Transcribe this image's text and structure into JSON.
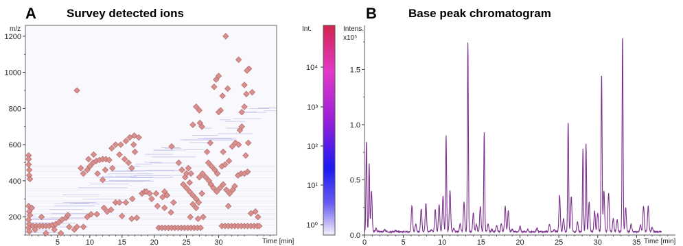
{
  "panels": {
    "a": {
      "letter": "A",
      "title": "Survey detected ions"
    },
    "b": {
      "letter": "B",
      "title": "Base peak chromatogram"
    }
  },
  "colors": {
    "marker_fill": "#d9918f",
    "marker_stroke": "#b8706e",
    "ion_trace": "#4040c0",
    "trace": "#7b2f8e",
    "colorbar_stops": [
      "#f4f0fa",
      "#6a5cf0",
      "#1a1af0",
      "#9b20d8",
      "#e23ac8",
      "#d3234d"
    ]
  },
  "chart_data": [
    {
      "type": "scatter",
      "title": "Survey detected ions",
      "xlabel": "Time [min]",
      "ylabel": "m/z",
      "xlim": [
        0,
        39
      ],
      "ylim": [
        100,
        1260
      ],
      "x_ticks": [
        5,
        10,
        15,
        20,
        25,
        30
      ],
      "y_ticks": [
        200,
        400,
        600,
        800,
        1000,
        1200
      ],
      "colorbar": {
        "label": "Int.",
        "scale": "log",
        "ticks": [
          "10⁰",
          "10¹",
          "10²",
          "10³",
          "10⁴"
        ]
      },
      "points": [
        [
          0.5,
          540
        ],
        [
          0.5,
          520
        ],
        [
          0.5,
          490
        ],
        [
          0.6,
          460
        ],
        [
          0.6,
          430
        ],
        [
          0.7,
          410
        ],
        [
          0.5,
          260
        ],
        [
          0.6,
          230
        ],
        [
          0.7,
          210
        ],
        [
          0.5,
          185
        ],
        [
          0.6,
          160
        ],
        [
          0.5,
          140
        ],
        [
          0.6,
          120
        ],
        [
          1.2,
          150
        ],
        [
          1.7,
          150
        ],
        [
          2.2,
          150
        ],
        [
          2.7,
          150
        ],
        [
          3.2,
          150
        ],
        [
          3.7,
          150
        ],
        [
          4.2,
          155
        ],
        [
          4.7,
          160
        ],
        [
          5.2,
          170
        ],
        [
          5.7,
          185
        ],
        [
          6.3,
          195
        ],
        [
          6.6,
          210
        ],
        [
          1.5,
          130
        ],
        [
          2.5,
          200
        ],
        [
          3.2,
          110
        ],
        [
          4.5,
          130
        ],
        [
          5.5,
          110
        ],
        [
          6.8,
          145
        ],
        [
          7.6,
          130
        ],
        [
          8.0,
          900
        ],
        [
          8.6,
          470
        ],
        [
          1.0,
          250
        ],
        [
          9.0,
          440
        ],
        [
          9.6,
          460
        ],
        [
          10.0,
          480
        ],
        [
          10.5,
          500
        ],
        [
          11.0,
          510
        ],
        [
          11.5,
          515
        ],
        [
          12.0,
          520
        ],
        [
          12.5,
          520
        ],
        [
          13.0,
          515
        ],
        [
          9.8,
          520
        ],
        [
          10.6,
          545
        ],
        [
          11.2,
          440
        ],
        [
          12.4,
          460
        ],
        [
          12.0,
          405
        ],
        [
          13.5,
          470
        ],
        [
          13.4,
          580
        ],
        [
          14.0,
          600
        ],
        [
          14.8,
          600
        ],
        [
          15.6,
          620
        ],
        [
          16.2,
          640
        ],
        [
          16.9,
          650
        ],
        [
          17.6,
          640
        ],
        [
          16.8,
          600
        ],
        [
          14.6,
          545
        ],
        [
          15.4,
          520
        ],
        [
          16.0,
          500
        ],
        [
          17.0,
          560
        ],
        [
          16.5,
          470
        ],
        [
          8.0,
          145
        ],
        [
          9.0,
          145
        ],
        [
          9.6,
          200
        ],
        [
          10.2,
          215
        ],
        [
          11.1,
          215
        ],
        [
          12.2,
          250
        ],
        [
          12.7,
          230
        ],
        [
          13.3,
          240
        ],
        [
          14.0,
          280
        ],
        [
          14.6,
          280
        ],
        [
          15.6,
          280
        ],
        [
          16.6,
          300
        ],
        [
          15.0,
          205
        ],
        [
          16.5,
          190
        ],
        [
          17.3,
          195
        ],
        [
          18.1,
          330
        ],
        [
          18.5,
          340
        ],
        [
          18.8,
          340
        ],
        [
          19.3,
          330
        ],
        [
          19.6,
          300
        ],
        [
          20.3,
          330
        ],
        [
          21.3,
          310
        ],
        [
          21.6,
          340
        ],
        [
          22.0,
          320
        ],
        [
          23.0,
          280
        ],
        [
          22.6,
          225
        ],
        [
          21.6,
          250
        ],
        [
          20.5,
          260
        ],
        [
          20.7,
          140
        ],
        [
          21.2,
          140
        ],
        [
          21.7,
          140
        ],
        [
          22.2,
          140
        ],
        [
          22.7,
          140
        ],
        [
          23.2,
          140
        ],
        [
          23.7,
          140
        ],
        [
          24.2,
          140
        ],
        [
          24.7,
          140
        ],
        [
          25.2,
          140
        ],
        [
          25.7,
          140
        ],
        [
          26.2,
          140
        ],
        [
          26.7,
          140
        ],
        [
          27.2,
          140
        ],
        [
          22.7,
          590
        ],
        [
          23.8,
          500
        ],
        [
          24.3,
          460
        ],
        [
          24.8,
          420
        ],
        [
          24.5,
          380
        ],
        [
          25.0,
          360
        ],
        [
          25.5,
          390
        ],
        [
          25.0,
          440
        ],
        [
          25.3,
          470
        ],
        [
          25.7,
          440
        ],
        [
          25.5,
          340
        ],
        [
          26.0,
          320
        ],
        [
          26.5,
          300
        ],
        [
          26.9,
          280
        ],
        [
          27.4,
          330
        ],
        [
          26.0,
          270
        ],
        [
          26.5,
          250
        ],
        [
          25.6,
          200
        ],
        [
          26.8,
          190
        ],
        [
          27.6,
          200
        ],
        [
          27.0,
          420
        ],
        [
          27.5,
          440
        ],
        [
          28.0,
          420
        ],
        [
          28.5,
          400
        ],
        [
          28.8,
          380
        ],
        [
          29.2,
          360
        ],
        [
          29.7,
          340
        ],
        [
          30.2,
          360
        ],
        [
          30.7,
          380
        ],
        [
          31.2,
          350
        ],
        [
          31.7,
          330
        ],
        [
          32.2,
          350
        ],
        [
          31.5,
          260
        ],
        [
          32.5,
          370
        ],
        [
          33.0,
          430
        ],
        [
          33.5,
          440
        ],
        [
          34.0,
          440
        ],
        [
          34.5,
          450
        ],
        [
          34.2,
          540
        ],
        [
          34.6,
          610
        ],
        [
          26.0,
          710
        ],
        [
          26.5,
          810
        ],
        [
          27.0,
          790
        ],
        [
          27.4,
          700
        ],
        [
          28.2,
          560
        ],
        [
          28.7,
          610
        ],
        [
          28.4,
          500
        ],
        [
          28.9,
          480
        ],
        [
          29.4,
          460
        ],
        [
          29.8,
          440
        ],
        [
          30.5,
          480
        ],
        [
          31.0,
          490
        ],
        [
          30.7,
          560
        ],
        [
          31.6,
          510
        ],
        [
          32.1,
          590
        ],
        [
          32.6,
          610
        ],
        [
          33.1,
          600
        ],
        [
          33.3,
          680
        ],
        [
          33.6,
          700
        ],
        [
          33.6,
          780
        ],
        [
          34.0,
          810
        ],
        [
          34.3,
          880
        ],
        [
          34.0,
          930
        ],
        [
          34.7,
          1020
        ],
        [
          33.1,
          1070
        ],
        [
          31.1,
          1200
        ],
        [
          30.0,
          980
        ],
        [
          29.6,
          960
        ],
        [
          29.3,
          920
        ],
        [
          30.6,
          870
        ],
        [
          30.3,
          790
        ],
        [
          30.0,
          780
        ],
        [
          31.4,
          910
        ],
        [
          35.2,
          890
        ],
        [
          34.4,
          1010
        ],
        [
          27.1,
          720
        ],
        [
          30.5,
          150
        ],
        [
          31.0,
          150
        ],
        [
          31.5,
          150
        ],
        [
          32.0,
          150
        ],
        [
          32.5,
          150
        ],
        [
          33.0,
          150
        ],
        [
          33.5,
          150
        ],
        [
          34.0,
          150
        ],
        [
          34.5,
          150
        ],
        [
          35.0,
          150
        ],
        [
          35.5,
          150
        ],
        [
          36.0,
          150
        ],
        [
          36.3,
          150
        ],
        [
          35.0,
          220
        ],
        [
          35.7,
          230
        ],
        [
          36.1,
          200
        ]
      ]
    },
    {
      "type": "line",
      "title": "Base peak chromatogram",
      "xlabel": "Time [min]",
      "ylabel": "Intens.",
      "y_multiplier": "x10⁵",
      "xlim": [
        0,
        40
      ],
      "ylim": [
        0,
        1.9
      ],
      "x_ticks": [
        0,
        5,
        10,
        15,
        20,
        25,
        30,
        35
      ],
      "y_ticks": [
        0.0,
        0.5,
        1.0,
        1.5
      ],
      "x_tick_labels": [
        "0",
        "5",
        "10",
        "15",
        "20",
        "25",
        "30",
        "35"
      ],
      "y_tick_labels": [
        "0.0",
        "0.5",
        "1.0",
        "1.5"
      ],
      "baseline": 0.03,
      "end_time": 38.2,
      "peaks": [
        [
          0.25,
          0.85
        ],
        [
          0.6,
          0.65
        ],
        [
          0.9,
          0.4
        ],
        [
          1.5,
          0.06
        ],
        [
          2.6,
          0.05
        ],
        [
          4.0,
          0.04
        ],
        [
          6.1,
          0.26
        ],
        [
          6.6,
          0.1
        ],
        [
          7.3,
          0.24
        ],
        [
          7.9,
          0.29
        ],
        [
          8.6,
          0.05
        ],
        [
          9.1,
          0.23
        ],
        [
          9.6,
          0.28
        ],
        [
          10.1,
          0.35
        ],
        [
          10.5,
          0.9
        ],
        [
          11.0,
          0.4
        ],
        [
          11.5,
          0.06
        ],
        [
          12.3,
          0.1
        ],
        [
          12.8,
          0.3
        ],
        [
          13.3,
          1.74
        ],
        [
          14.0,
          0.2
        ],
        [
          14.4,
          0.1
        ],
        [
          14.9,
          0.26
        ],
        [
          15.4,
          0.93
        ],
        [
          15.9,
          0.1
        ],
        [
          16.4,
          0.05
        ],
        [
          17.0,
          0.09
        ],
        [
          17.6,
          0.1
        ],
        [
          18.1,
          0.26
        ],
        [
          18.5,
          0.22
        ],
        [
          19.0,
          0.05
        ],
        [
          20.0,
          0.08
        ],
        [
          21.0,
          0.05
        ],
        [
          22.2,
          0.06
        ],
        [
          23.8,
          0.1
        ],
        [
          24.4,
          0.05
        ],
        [
          25.1,
          0.36
        ],
        [
          25.6,
          0.15
        ],
        [
          26.2,
          1.03
        ],
        [
          26.6,
          0.35
        ],
        [
          27.4,
          0.12
        ],
        [
          28.1,
          0.78
        ],
        [
          28.5,
          0.83
        ],
        [
          28.9,
          0.3
        ],
        [
          29.6,
          0.22
        ],
        [
          30.0,
          0.2
        ],
        [
          30.5,
          1.46
        ],
        [
          30.8,
          0.4
        ],
        [
          31.4,
          0.38
        ],
        [
          32.0,
          0.15
        ],
        [
          32.5,
          0.14
        ],
        [
          33.2,
          1.8
        ],
        [
          33.6,
          0.25
        ],
        [
          34.3,
          0.1
        ],
        [
          35.5,
          0.09
        ],
        [
          35.9,
          0.26
        ],
        [
          36.5,
          0.26
        ],
        [
          37.0,
          0.07
        ]
      ]
    }
  ]
}
